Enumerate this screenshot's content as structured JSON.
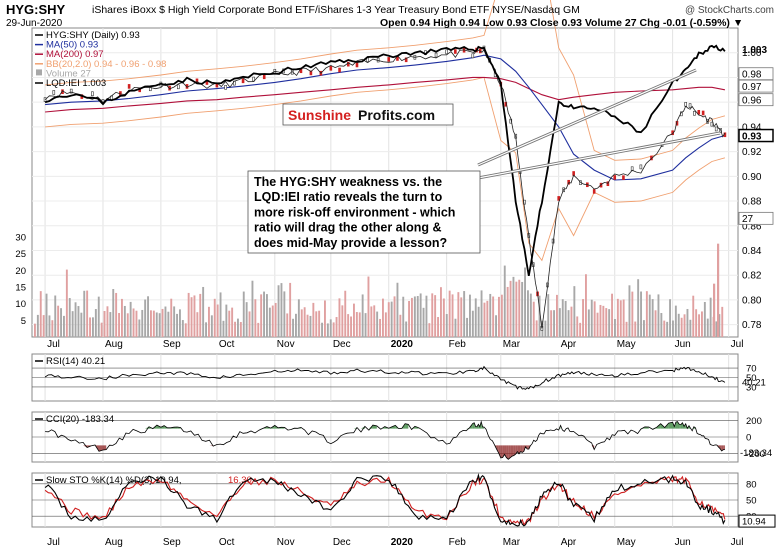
{
  "header": {
    "symbol": "HYG:SHY",
    "description": "iShares iBoxx $ High Yield Corporate Bond ETF/iShares 1-3 Year Treasury Bond ETF  NYSE/Nasdaq GM",
    "date": "29-Jun-2020",
    "ohlc": "Open 0.94  High 0.94  Low 0.93  Close 0.93  Volume 27  Chg -0.01 (-0.59%) ▼",
    "copyright": "@ StockCharts.com"
  },
  "colors": {
    "price_line": "#000000",
    "ma50": "#1f2f9e",
    "ma200": "#b0103a",
    "bollinger": "#f0a070",
    "volume_down": "#e0a0a0",
    "volume_up": "#a8a8a8",
    "candle_down": "#d02020",
    "rsi_line": "#000000",
    "stoch_d": "#d02020",
    "fill_green": "#2e7d32",
    "fill_red": "#8b2020",
    "sunshine_red": "#d4201f"
  },
  "annotation": {
    "lines": [
      "The HYG:SHY weakness vs. the",
      "LQD:IEI ratio reveals the turn to",
      "more risk-off environment - which",
      "ratio will drag the other along &",
      "does mid-May provide a lesson?"
    ]
  },
  "logo": {
    "part1": "Sunshine",
    "part2": "Profits.com"
  },
  "chart_data": [
    {
      "type": "line",
      "panel": "price",
      "legend_title": "HYG:SHY (Daily) 0.93",
      "legend": [
        {
          "name": "MA(50) 0.93",
          "color": "#1f2f9e"
        },
        {
          "name": "MA(200) 0.97",
          "color": "#b0103a"
        },
        {
          "name": "BB(20,2.0) 0.94 - 0.96 - 0.98",
          "color": "#f0a070"
        },
        {
          "name": "Volume 27",
          "color": "#a8a8a8"
        },
        {
          "name": "LQD:IEI 1.003",
          "color": "#000000"
        }
      ],
      "x_labels": [
        "Jul",
        "Aug",
        "Sep",
        "Oct",
        "Nov",
        "Dec",
        "2020",
        "Feb",
        "Mar",
        "Apr",
        "May",
        "Jun",
        "Jul"
      ],
      "x": [
        "2019-07-01",
        "2019-07-15",
        "2019-08-01",
        "2019-08-15",
        "2019-09-01",
        "2019-09-15",
        "2019-10-01",
        "2019-10-15",
        "2019-11-01",
        "2019-11-15",
        "2019-12-01",
        "2019-12-15",
        "2020-01-01",
        "2020-01-15",
        "2020-02-01",
        "2020-02-15",
        "2020-02-21",
        "2020-03-01",
        "2020-03-09",
        "2020-03-16",
        "2020-03-23",
        "2020-04-01",
        "2020-04-09",
        "2020-04-20",
        "2020-05-01",
        "2020-05-15",
        "2020-06-01",
        "2020-06-08",
        "2020-06-15",
        "2020-06-22",
        "2020-06-29"
      ],
      "y_ticks": [
        0.78,
        0.8,
        0.82,
        0.84,
        0.86,
        0.88,
        0.9,
        0.92,
        0.94,
        0.96,
        0.98,
        1.0
      ],
      "y_tick_labels": [
        "0.78",
        "0.80",
        "0.82",
        "0.84",
        "0.86",
        "0.88",
        "0.90",
        "0.92",
        "0.94",
        "0.96",
        "0.98",
        "1.00"
      ],
      "price_tags": [
        {
          "label": "1.003",
          "value": 1.003,
          "style": "plain"
        },
        {
          "label": "0.98",
          "value": 0.983,
          "style": "box"
        },
        {
          "label": "0.97",
          "value": 0.973,
          "style": "box"
        },
        {
          "label": "0.96",
          "value": 0.962,
          "style": "box"
        },
        {
          "label": "0.93",
          "value": 0.933,
          "style": "dark"
        },
        {
          "label": "27",
          "value": 0.866,
          "style": "box"
        }
      ],
      "ylim": [
        0.77,
        1.02
      ],
      "series": [
        {
          "name": "HYG:SHY",
          "values": [
            0.965,
            0.968,
            0.962,
            0.97,
            0.973,
            0.975,
            0.973,
            0.977,
            0.982,
            0.985,
            0.987,
            0.991,
            0.995,
            0.997,
            0.998,
            1.0,
            1.002,
            0.975,
            0.93,
            0.85,
            0.78,
            0.88,
            0.9,
            0.89,
            0.9,
            0.905,
            0.935,
            0.958,
            0.95,
            0.945,
            0.933
          ]
        },
        {
          "name": "LQD:IEI",
          "values": [
            0.962,
            0.967,
            0.96,
            0.968,
            0.975,
            0.978,
            0.975,
            0.98,
            0.984,
            0.988,
            0.992,
            0.994,
            0.998,
            1.0,
            1.002,
            1.003,
            1.004,
            0.975,
            0.88,
            0.82,
            0.88,
            0.96,
            0.955,
            0.955,
            0.948,
            0.935,
            0.975,
            0.985,
            0.999,
            1.005,
            1.003
          ]
        },
        {
          "name": "MA(50)",
          "values": [
            0.958,
            0.96,
            0.961,
            0.963,
            0.966,
            0.969,
            0.971,
            0.973,
            0.976,
            0.979,
            0.983,
            0.986,
            0.988,
            0.99,
            0.993,
            0.996,
            0.998,
            0.995,
            0.985,
            0.972,
            0.958,
            0.94,
            0.918,
            0.905,
            0.897,
            0.898,
            0.905,
            0.915,
            0.923,
            0.93,
            0.933
          ]
        },
        {
          "name": "MA(200)",
          "values": [
            0.952,
            0.954,
            0.955,
            0.957,
            0.959,
            0.961,
            0.962,
            0.964,
            0.966,
            0.968,
            0.97,
            0.972,
            0.974,
            0.976,
            0.978,
            0.98,
            0.98,
            0.979,
            0.976,
            0.971,
            0.966,
            0.962,
            0.964,
            0.966,
            0.968,
            0.969,
            0.97,
            0.971,
            0.972,
            0.972,
            0.97
          ]
        }
      ],
      "volume_ylim": [
        0,
        30
      ],
      "volume_ticks": [
        5,
        10,
        15,
        20,
        25,
        30
      ]
    },
    {
      "type": "line",
      "panel": "RSI",
      "legend_title": "RSI(14) 40.21",
      "ylim": [
        0,
        100
      ],
      "y_ticks": [
        30,
        50,
        70
      ],
      "y_tick_labels": [
        "30",
        "50",
        "70"
      ],
      "current_label": "40.21",
      "values": [
        55,
        50,
        48,
        55,
        60,
        58,
        50,
        55,
        62,
        65,
        60,
        64,
        62,
        60,
        58,
        65,
        70,
        45,
        30,
        25,
        40,
        55,
        60,
        58,
        55,
        60,
        65,
        72,
        62,
        50,
        40.21
      ]
    },
    {
      "type": "line",
      "panel": "CCI",
      "legend_title": "CCI(20) -183.34",
      "ylim": [
        -300,
        300
      ],
      "y_ticks": [
        -200,
        0,
        200
      ],
      "y_tick_labels": [
        "-200",
        "0",
        "200"
      ],
      "current_label": "-183.34",
      "values": [
        100,
        -50,
        -150,
        50,
        120,
        80,
        -100,
        60,
        120,
        100,
        -50,
        80,
        140,
        120,
        -80,
        160,
        150,
        -250,
        -220,
        -120,
        60,
        110,
        80,
        -120,
        40,
        80,
        160,
        150,
        60,
        -80,
        -183.34
      ]
    },
    {
      "type": "line",
      "panel": "STO",
      "legend_title": "Slow STO %K(14) %D(3) 10.94, 16.30",
      "legend_k": "Slow STO %K(14) %D(3) 10.94,",
      "legend_d": "16.30",
      "ylim": [
        0,
        100
      ],
      "y_ticks": [
        20,
        50,
        80
      ],
      "y_tick_labels": [
        "20",
        "50",
        "80"
      ],
      "current_label": "10.94",
      "k_values": [
        80,
        20,
        10,
        85,
        90,
        40,
        15,
        90,
        85,
        60,
        30,
        85,
        90,
        20,
        15,
        88,
        90,
        10,
        5,
        10,
        60,
        85,
        40,
        15,
        70,
        80,
        90,
        85,
        40,
        30,
        10.94
      ],
      "d_values": [
        75,
        30,
        15,
        75,
        88,
        50,
        20,
        82,
        87,
        65,
        38,
        78,
        88,
        28,
        18,
        82,
        89,
        18,
        8,
        10,
        50,
        80,
        48,
        20,
        60,
        78,
        88,
        86,
        48,
        33,
        16.3
      ]
    }
  ]
}
